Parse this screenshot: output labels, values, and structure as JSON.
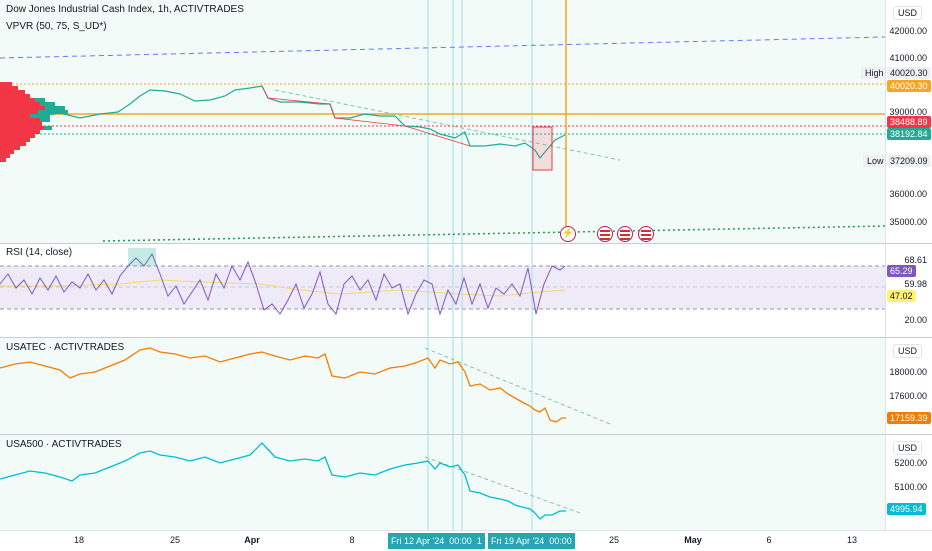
{
  "main": {
    "title": "Dow Jones Industrial Cash Index, 1h, ACTIVTRADES",
    "indicator": "VPVR (50, 75, S_UD*)",
    "currency": "USD",
    "ticks": [
      "42000.00",
      "41000.00",
      "39000.00",
      "36000.00",
      "35000.00"
    ],
    "high_label": "High",
    "high_value": "40020.30",
    "high_tag": "40020.30",
    "price_tag_red": "38488.89",
    "price_tag_green": "38192.84",
    "low_label": "Low",
    "low_value": "37209.09"
  },
  "rsi": {
    "title": "RSI (14, close)",
    "ticks": [
      "68.61",
      "59.98",
      "20.00"
    ],
    "tag_value": "65.29",
    "tag_ma": "47.02"
  },
  "usatec": {
    "title": "USATEC · ACTIVTRADES",
    "currency": "USD",
    "ticks": [
      "18000.00",
      "17600.00"
    ],
    "tag": "17159.39"
  },
  "usa500": {
    "title": "USA500 · ACTIVTRADES",
    "currency": "USD",
    "ticks": [
      "5200.00",
      "5100.00"
    ],
    "tag": "4995.94"
  },
  "time_axis": {
    "labels": [
      "18",
      "25",
      "Apr",
      "8",
      "25",
      "May",
      "6",
      "13"
    ],
    "highlight": [
      "Fri 12 Apr '24",
      "00:00",
      "1",
      "Fri 19 Apr '24",
      "00:00"
    ]
  },
  "colors": {
    "red": "#f23645",
    "green": "#22ab94",
    "orange": "#f57c00",
    "cyan": "#00bcd4",
    "rsi_purple": "#7e57c2",
    "highlight": "#26a6b1"
  },
  "icons": [
    "lightning-icon",
    "us-flag-icon",
    "us-flag-icon",
    "us-flag-icon"
  ]
}
